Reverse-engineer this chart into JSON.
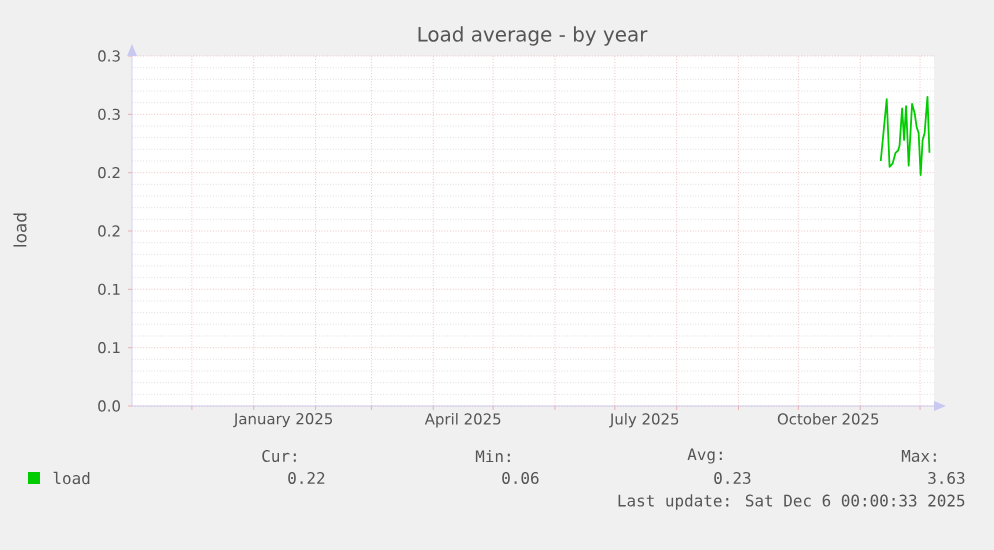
{
  "chart_data": {
    "type": "line",
    "title": "Load average - by year",
    "ylabel": "load",
    "x": [
      "2025-11-11T07:00",
      "2025-11-14T07:00",
      "2025-11-15T17:00",
      "2025-11-17T07:00",
      "2025-11-18T17:00",
      "2025-11-20T00:00",
      "2025-11-20T17:00",
      "2025-11-22T00:00",
      "2025-11-23T00:00",
      "2025-11-24T00:00",
      "2025-11-25T07:00",
      "2025-11-27T00:00",
      "2025-11-28T07:00",
      "2025-11-29T07:00",
      "2025-11-30T07:00",
      "2025-12-01T07:00",
      "2025-12-02T07:00",
      "2025-12-03T07:00",
      "2025-12-04T17:00",
      "2025-12-05T17:00"
    ],
    "series": [
      {
        "name": "load",
        "color": "#00cc00",
        "values": [
          0.21,
          0.263,
          0.205,
          0.208,
          0.217,
          0.219,
          0.223,
          0.255,
          0.228,
          0.257,
          0.206,
          0.259,
          0.251,
          0.239,
          0.234,
          0.198,
          0.228,
          0.234,
          0.265,
          0.217
        ]
      }
    ],
    "xlim": [
      "2024-11-01",
      "2025-12-08"
    ],
    "xticks": [
      {
        "value": "2024-12-01",
        "label": null
      },
      {
        "value": "2025-01-01",
        "label": null
      },
      {
        "value": "2025-01-16",
        "label": "January 2025"
      },
      {
        "value": "2025-02-01",
        "label": null
      },
      {
        "value": "2025-03-01",
        "label": null
      },
      {
        "value": "2025-04-01",
        "label": null
      },
      {
        "value": "2025-04-16",
        "label": "April 2025"
      },
      {
        "value": "2025-05-01",
        "label": null
      },
      {
        "value": "2025-06-01",
        "label": null
      },
      {
        "value": "2025-07-01",
        "label": null
      },
      {
        "value": "2025-07-16",
        "label": "July 2025"
      },
      {
        "value": "2025-08-01",
        "label": null
      },
      {
        "value": "2025-09-01",
        "label": null
      },
      {
        "value": "2025-10-01",
        "label": null
      },
      {
        "value": "2025-10-16",
        "label": "October 2025"
      },
      {
        "value": "2025-11-01",
        "label": null
      },
      {
        "value": "2025-12-01",
        "label": null
      }
    ],
    "ylim": [
      0,
      0.3
    ],
    "yticks": [
      {
        "value": 0,
        "label": "0.0"
      },
      {
        "value": 0.05,
        "label": "0.1"
      },
      {
        "value": 0.1,
        "label": "0.1"
      },
      {
        "value": 0.15,
        "label": "0.2"
      },
      {
        "value": 0.2,
        "label": "0.2"
      },
      {
        "value": 0.25,
        "label": "0.3"
      },
      {
        "value": 0.3,
        "label": "0.3"
      }
    ],
    "grid": true,
    "legend": "bottom left",
    "marker": "none",
    "line_style": "solid",
    "annotations": [
      "Cur:",
      "0.22",
      "Min:",
      "0.06",
      "Avg:",
      "0.23",
      "Max:",
      "3.63",
      "Last update: Sat Dec  6 00:00:33 2025"
    ]
  }
}
